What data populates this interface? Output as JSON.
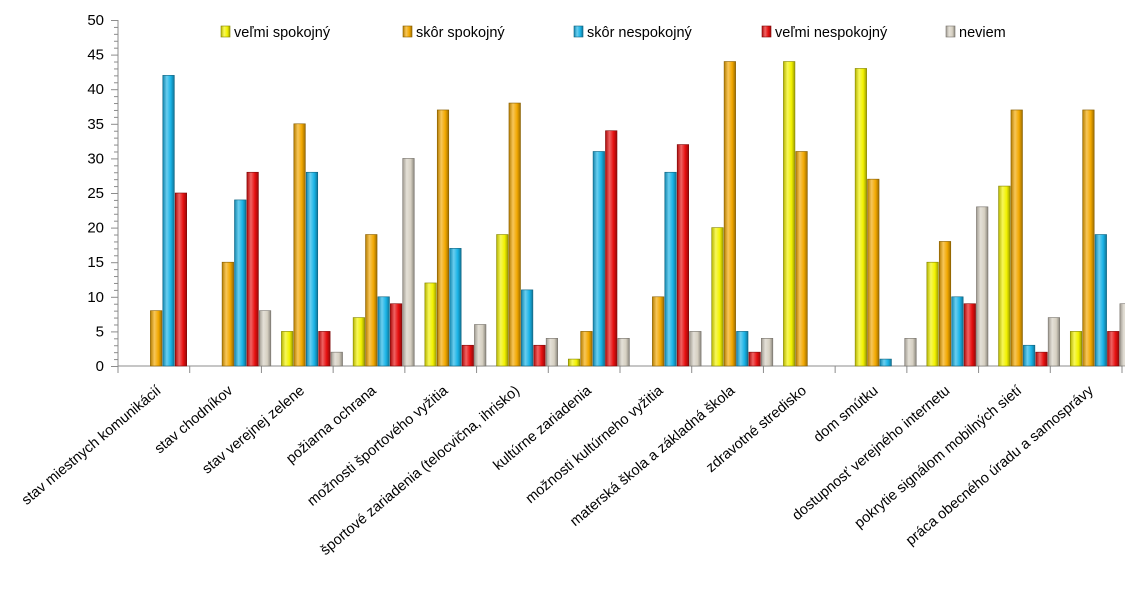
{
  "chart_data": {
    "type": "bar",
    "ylim": [
      0,
      50
    ],
    "yticks": [
      0,
      5,
      10,
      15,
      20,
      25,
      30,
      35,
      40,
      45,
      50
    ],
    "grid": false,
    "legend_position": "top",
    "categories": [
      "stav miestnych komunikácií",
      "stav chodníkov",
      "stav verejnej zelene",
      "požiarna ochrana",
      "možnosti športového vyžitia",
      "športové zariadenia (telocvična, ihrisko)",
      "kultúrne zariadenia",
      "možnosti kultúrneho vyžitia",
      "materská škola a základná škola",
      "zdravotné stredisko",
      "dom smútku",
      "dostupnosť verejného internetu",
      "pokrytie signálom mobilných sietí",
      "práca obecného úradu a samosprávy"
    ],
    "series": [
      {
        "name": "veľmi spokojný",
        "color": "#f2f200",
        "values": [
          0,
          0,
          5,
          7,
          12,
          19,
          1,
          0,
          20,
          44,
          43,
          15,
          26,
          5
        ]
      },
      {
        "name": "skôr spokojný",
        "color": "#f2a800",
        "values": [
          8,
          15,
          35,
          19,
          37,
          38,
          5,
          10,
          44,
          31,
          27,
          18,
          37,
          37
        ]
      },
      {
        "name": "skôr nespokojný",
        "color": "#19b3e6",
        "values": [
          42,
          24,
          28,
          10,
          17,
          11,
          31,
          28,
          5,
          0,
          1,
          10,
          3,
          19
        ]
      },
      {
        "name": "veľmi nespokojný",
        "color": "#e60f0f",
        "values": [
          25,
          28,
          5,
          9,
          3,
          3,
          34,
          32,
          2,
          0,
          0,
          9,
          2,
          5
        ]
      },
      {
        "name": "neviem",
        "color": "#d6d0c2",
        "values": [
          0,
          8,
          2,
          30,
          6,
          4,
          4,
          5,
          4,
          0,
          4,
          23,
          7,
          9
        ]
      }
    ]
  }
}
